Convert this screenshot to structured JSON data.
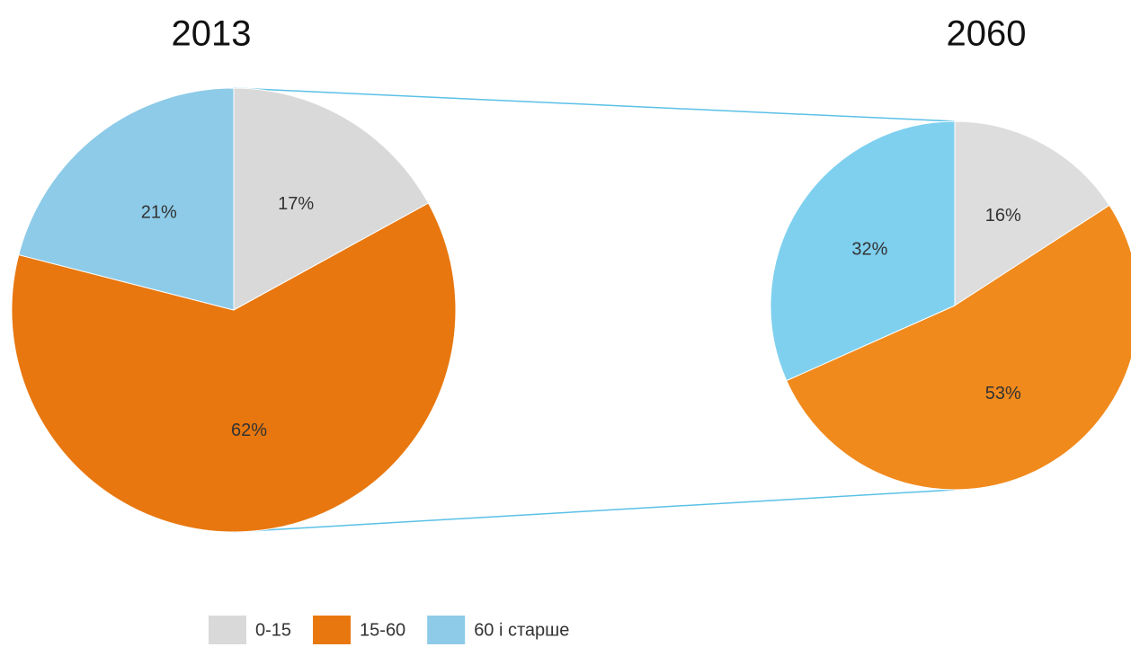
{
  "chart_data": [
    {
      "type": "pie",
      "title": "2013",
      "categories": [
        "0-15",
        "15-60",
        "60 і старше"
      ],
      "values": [
        17,
        62,
        21
      ],
      "colors": [
        "#d9d9d9",
        "#e8770f",
        "#8dcbe8"
      ]
    },
    {
      "type": "pie",
      "title": "2060",
      "categories": [
        "0-15",
        "15-60",
        "60 і старше"
      ],
      "values": [
        16,
        53,
        32
      ],
      "colors": [
        "#dddddd",
        "#f08a1c",
        "#7fd0ef"
      ]
    }
  ]
}
